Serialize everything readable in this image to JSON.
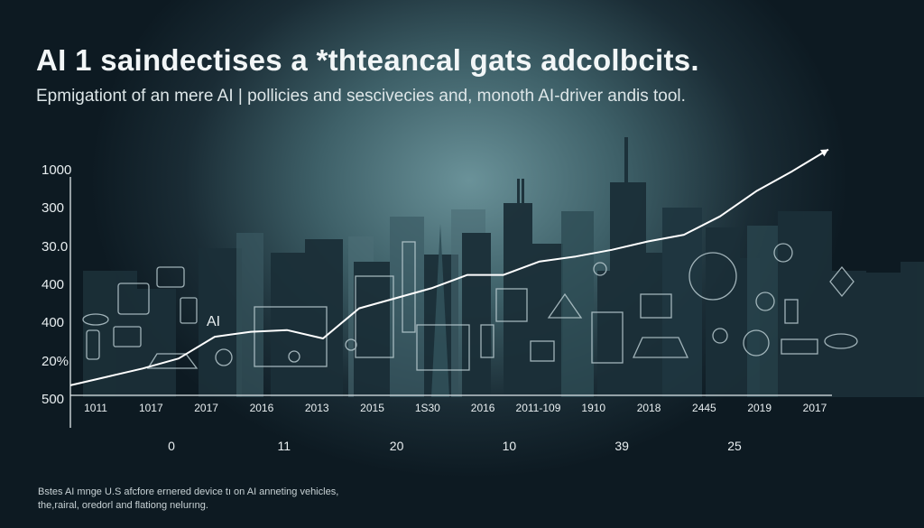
{
  "title": "AI 1 saindectises a *thteancal gats adcolbcits.",
  "subtitle": "Epmigationt of an mere AI | pollicies and sescivecies and, monoth AI-driver andis tool.",
  "annotation": "AI",
  "chart_data": {
    "type": "line",
    "title": "AI 1 saindectises a *thteancal gats adcolbcits.",
    "y_tick_labels": [
      "1000",
      "300",
      "30.0",
      "400",
      "400",
      "20%",
      "500"
    ],
    "x_tick_labels": [
      "1011",
      "1017",
      "2017",
      "2016",
      "2013",
      "2015",
      "1S30",
      "2016",
      "2011-109",
      "1910",
      "2018",
      "2445",
      "2019",
      "2017"
    ],
    "x2_tick_labels": [
      "0",
      "11",
      "20",
      "10",
      "39",
      "25"
    ],
    "series": [
      {
        "values": [
          0.06,
          0.11,
          0.16,
          0.22,
          0.35,
          0.38,
          0.39,
          0.34,
          0.52,
          0.58,
          0.64,
          0.72,
          0.72,
          0.8,
          0.83,
          0.87,
          0.92,
          0.96,
          1.07,
          1.22,
          1.34,
          1.47
        ]
      }
    ],
    "ylim": [
      0,
      1.5
    ],
    "grid": false
  },
  "footnote": {
    "line1": "Bstes AI mnge U.S afcfore ernered device tı on AI anneting vehicles,",
    "line2": "the,rairal, oredorl and flationg nelurıng."
  },
  "colors": {
    "background": "#0d1a22",
    "glow": "#6a9299",
    "buildings": "#1b2f38",
    "line": "#ffffff",
    "icons": "#b9cbd0"
  }
}
